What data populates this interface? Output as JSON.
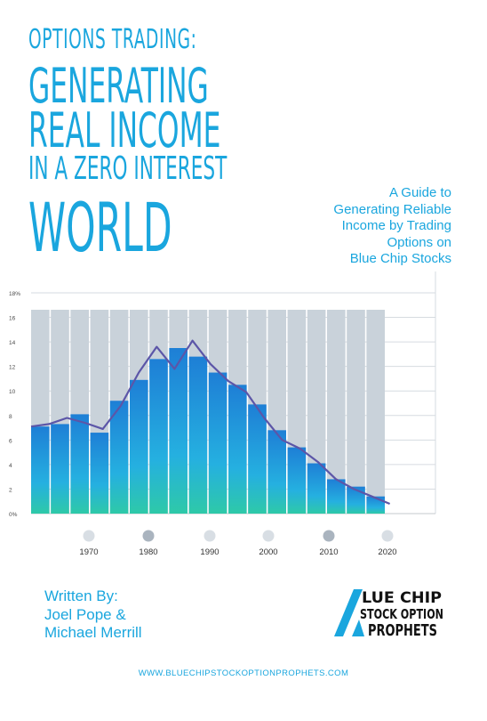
{
  "cover": {
    "title_lines": [
      "OPTIONS TRADING:",
      "GENERATING",
      "REAL INCOME",
      "IN A ZERO INTEREST",
      "WORLD"
    ],
    "subtitle_lines": [
      "A Guide to",
      "Generating Reliable",
      "Income by Trading",
      "Options on",
      "Blue Chip Stocks"
    ],
    "written_by": "Written By:",
    "authors": [
      "Joel Pope &",
      "Michael Merrill"
    ],
    "logo_lines": [
      "LUE CHIP",
      "STOCK OPTION",
      "PROPHETS"
    ],
    "url": "WWW.BLUECHIPSTOCKOPTIONPROPHETS.COM",
    "colors": {
      "accent": "#1aa6de",
      "bar_top": "#1e7fd6",
      "bar_bottom": "#2ec9a8",
      "line": "#5c56a8",
      "column_bg": "#c9d2da"
    }
  },
  "chart_data": {
    "type": "bar",
    "y_tick_labels": [
      "0%",
      "2",
      "4",
      "6",
      "8",
      "10",
      "12",
      "14",
      "16",
      "18%"
    ],
    "ylim": [
      0,
      18
    ],
    "x_labels": [
      "1970",
      "1980",
      "1990",
      "2000",
      "2010",
      "2020"
    ],
    "values": [
      7.1,
      7.3,
      8.1,
      6.6,
      9.2,
      10.9,
      12.6,
      13.5,
      12.8,
      11.5,
      10.5,
      8.9,
      6.8,
      5.4,
      4.1,
      2.8,
      2.2,
      1.4
    ],
    "line": [
      7.1,
      7.3,
      7.8,
      7.4,
      6.9,
      8.8,
      11.5,
      13.6,
      11.8,
      14.1,
      12.2,
      10.8,
      9.9,
      7.8,
      6.0,
      5.3,
      4.2,
      2.8,
      2.0,
      1.4,
      0.8
    ],
    "legend_dots": [
      "light",
      "dark",
      "light",
      "light",
      "dark",
      "light"
    ]
  }
}
